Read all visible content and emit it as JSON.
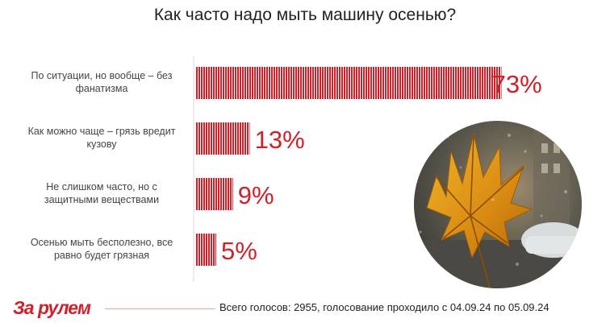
{
  "title": "Как часто надо мыть машину осенью?",
  "chart_data": {
    "type": "bar",
    "orientation": "horizontal",
    "categories": [
      "По ситуации, но вообще – без фанатизма",
      "Как можно чаще – грязь вредит кузову",
      "Не слишком часто, но с защитными веществами",
      "Осенью мыть бесполезно, все равно будет грязная"
    ],
    "values": [
      73,
      13,
      9,
      5
    ],
    "value_labels": [
      "73%",
      "13%",
      "9%",
      "5%"
    ],
    "xlim": [
      0,
      100
    ],
    "grid": false,
    "bar_color": "#d0202a"
  },
  "category_lines": [
    [
      "По ситуации, но вообще – без",
      "фанатизма"
    ],
    [
      "Как можно чаще – грязь вредит",
      "кузову"
    ],
    [
      "Не слишком часто, но с",
      "защитными веществами"
    ],
    [
      "Осенью мыть бесполезно, все",
      "равно будет грязная"
    ]
  ],
  "photo_icon": "maple-leaf-rainy-window-icon",
  "logo": "За рулем",
  "footer": "Всего голосов: 2955, голосование проходило с 04.09.24 по 05.09.24",
  "colors": {
    "accent": "#d0202a",
    "text": "#222222"
  }
}
